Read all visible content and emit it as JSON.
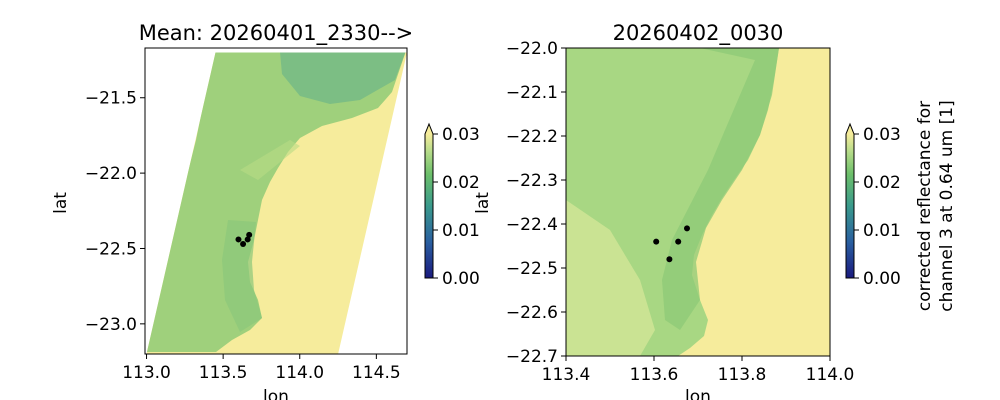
{
  "chart_data": [
    {
      "type": "heatmap",
      "title": "Mean: 20260401_2330-->",
      "xlabel": "lon",
      "ylabel": "lat",
      "xlim": [
        112.99,
        114.7
      ],
      "ylim": [
        -23.2,
        -21.17
      ],
      "xticks": [
        "113.0",
        "113.5",
        "114.0",
        "114.5"
      ],
      "xtick_values": [
        113.0,
        113.5,
        114.0,
        114.5
      ],
      "yticks": [
        "−21.5",
        "−22.0",
        "−22.5",
        "−23.0"
      ],
      "ytick_values": [
        -21.5,
        -22.0,
        -22.5,
        -23.0
      ],
      "swath_corners": [
        [
          113.45,
          -21.2
        ],
        [
          114.7,
          -21.2
        ],
        [
          114.25,
          -23.2
        ],
        [
          113.0,
          -23.2
        ]
      ],
      "colormap": "summer-like (navy → teal → green → pale yellow)",
      "points": [
        {
          "lon": 113.6,
          "lat": -22.44
        },
        {
          "lon": 113.63,
          "lat": -22.47
        },
        {
          "lon": 113.66,
          "lat": -22.44
        },
        {
          "lon": 113.67,
          "lat": -22.41
        }
      ],
      "colorbar": {
        "range": [
          0.0,
          0.03
        ],
        "ticks": [
          "0.00",
          "0.01",
          "0.02",
          "0.03"
        ],
        "extend": "max",
        "label": ""
      }
    },
    {
      "type": "heatmap",
      "title": "20260402_0030",
      "xlabel": "lon",
      "ylabel": "lat",
      "xlim": [
        113.4,
        114.0
      ],
      "ylim": [
        -22.7,
        -22.0
      ],
      "xticks": [
        "113.4",
        "113.6",
        "113.8",
        "114.0"
      ],
      "xtick_values": [
        113.4,
        113.6,
        113.8,
        114.0
      ],
      "yticks": [
        "−22.0",
        "−22.1",
        "−22.2",
        "−22.3",
        "−22.4",
        "−22.5",
        "−22.6",
        "−22.7"
      ],
      "ytick_values": [
        -22.0,
        -22.1,
        -22.2,
        -22.3,
        -22.4,
        -22.5,
        -22.6,
        -22.7
      ],
      "colormap": "summer-like (navy → teal → green → pale yellow)",
      "points": [
        {
          "lon": 113.605,
          "lat": -22.44
        },
        {
          "lon": 113.635,
          "lat": -22.48
        },
        {
          "lon": 113.655,
          "lat": -22.44
        },
        {
          "lon": 113.675,
          "lat": -22.41
        }
      ],
      "colorbar": {
        "range": [
          0.0,
          0.03
        ],
        "ticks": [
          "0.00",
          "0.01",
          "0.02",
          "0.03"
        ],
        "extend": "max",
        "label_lines": [
          "corrected reflectance for",
          "channel 3 at 0.64 um [1]"
        ]
      }
    }
  ],
  "colors": {
    "colormap_stops": [
      "#1a1a7e",
      "#2a5fa0",
      "#3a9a8c",
      "#6cbf6a",
      "#b7dc8a",
      "#f6ec9c"
    ],
    "land": "#f6ec9c",
    "marker": "#000000"
  }
}
